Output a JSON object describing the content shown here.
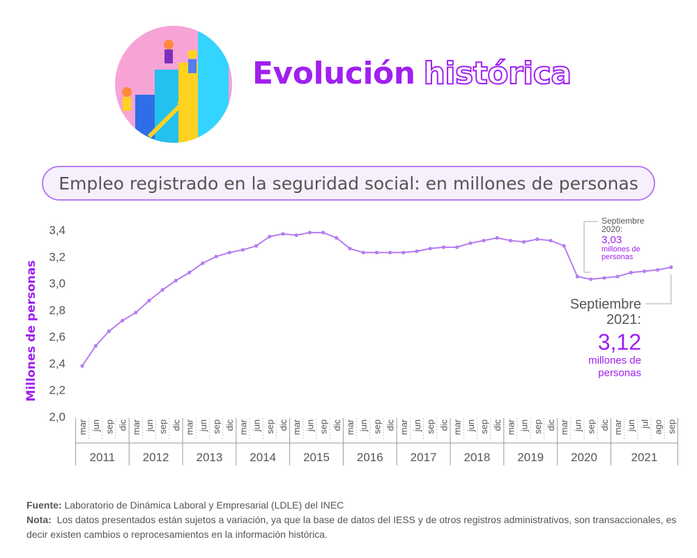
{
  "title": {
    "word1": "Evolución",
    "word2": "histórica"
  },
  "subtitle": "Empleo registrado en la seguridad social: en millones de personas",
  "footer": {
    "source_label": "Fuente:",
    "source_text": "Laboratorio de Dinámica Laboral y Empresarial (LDLE) del INEC",
    "note_label": "Nota:",
    "note_text": "Los datos presentados están sujetos a variación, ya que la base de datos del IESS y de otros registros administrativos, son transaccionales, es decir existen cambios o reprocesamientos en la información histórica."
  },
  "colors": {
    "accent": "#a020f0",
    "line": "#b57cf0",
    "axis_text": "#555555"
  },
  "chart_data": {
    "type": "line",
    "ylabel": "Millones de personas",
    "ylim": [
      2.0,
      3.4
    ],
    "yticks": [
      "2,0",
      "2,2",
      "2,4",
      "2,6",
      "2,8",
      "3,0",
      "3,2",
      "3,4"
    ],
    "year_groups": [
      {
        "year": "2011",
        "months": [
          "mar",
          "jun",
          "sep",
          "dic"
        ]
      },
      {
        "year": "2012",
        "months": [
          "mar",
          "jun",
          "sep",
          "dic"
        ]
      },
      {
        "year": "2013",
        "months": [
          "mar",
          "jun",
          "sep",
          "dic"
        ]
      },
      {
        "year": "2014",
        "months": [
          "mar",
          "jun",
          "sep",
          "dic"
        ]
      },
      {
        "year": "2015",
        "months": [
          "mar",
          "jun",
          "sep",
          "dic"
        ]
      },
      {
        "year": "2016",
        "months": [
          "mar",
          "jun",
          "sep",
          "dic"
        ]
      },
      {
        "year": "2017",
        "months": [
          "mar",
          "jun",
          "sep",
          "dic"
        ]
      },
      {
        "year": "2018",
        "months": [
          "mar",
          "jun",
          "sep",
          "dic"
        ]
      },
      {
        "year": "2019",
        "months": [
          "mar",
          "jun",
          "sep",
          "dic"
        ]
      },
      {
        "year": "2020",
        "months": [
          "mar",
          "jun",
          "sep",
          "dic"
        ]
      },
      {
        "year": "2021",
        "months": [
          "mar",
          "jun",
          "jul",
          "ago",
          "sep"
        ]
      }
    ],
    "values": [
      2.38,
      2.53,
      2.64,
      2.72,
      2.78,
      2.87,
      2.95,
      3.02,
      3.08,
      3.15,
      3.2,
      3.23,
      3.25,
      3.28,
      3.35,
      3.37,
      3.36,
      3.38,
      3.38,
      3.34,
      3.26,
      3.23,
      3.23,
      3.23,
      3.23,
      3.24,
      3.26,
      3.27,
      3.27,
      3.3,
      3.32,
      3.34,
      3.32,
      3.31,
      3.33,
      3.32,
      3.28,
      3.05,
      3.03,
      3.04,
      3.05,
      3.08,
      3.09,
      3.1,
      3.12
    ],
    "annotations": [
      {
        "l1": "Septiembre",
        "l2": "2020:",
        "value": "3,03",
        "unit1": "millones de",
        "unit2": "personas"
      },
      {
        "l1": "Septiembre",
        "l2": "2021:",
        "value": "3,12",
        "unit1": "millones de",
        "unit2": "personas"
      }
    ]
  }
}
